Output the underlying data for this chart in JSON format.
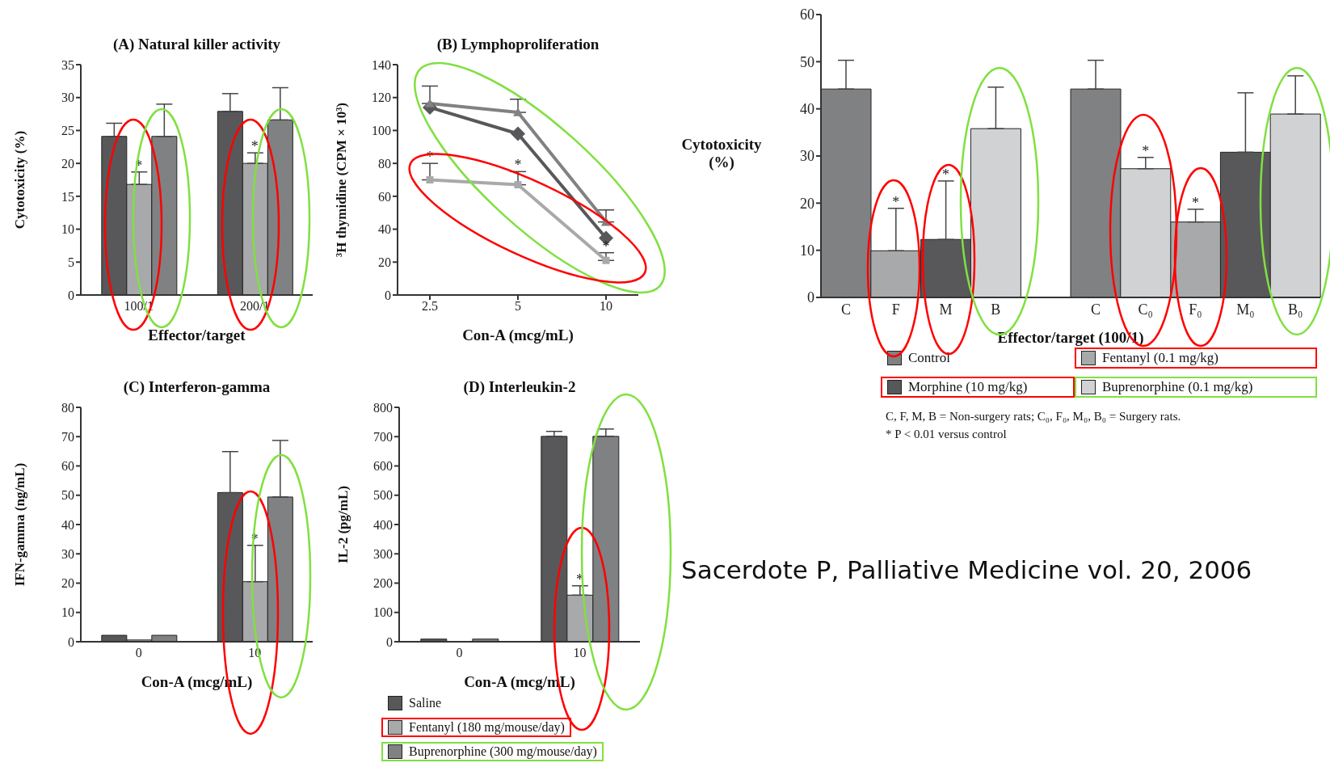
{
  "chart_data": [
    {
      "type": "bar",
      "title": "(A) Natural killer activity",
      "xlabel": "Effector/target",
      "ylabel": "Cytotoxicity (%)",
      "categories": [
        "100/1",
        "200/1"
      ],
      "ylim": [
        0,
        35
      ],
      "yticks": [
        0,
        5,
        10,
        15,
        20,
        25,
        30,
        35
      ],
      "series": [
        {
          "color": "#58585a",
          "values": [
            24.1,
            27.9
          ],
          "errors": [
            [
              24.1,
              26.1
            ],
            [
              27.9,
              30.6
            ]
          ]
        },
        {
          "color": "#a8a9ab",
          "values": [
            16.8,
            20.0
          ],
          "errors": [
            [
              16.8,
              18.7
            ],
            [
              20.0,
              21.6
            ]
          ]
        },
        {
          "color": "#808183",
          "values": [
            24.1,
            26.6
          ],
          "errors": [
            [
              24.1,
              29.0
            ],
            [
              26.6,
              31.5
            ]
          ]
        }
      ],
      "annotations": [
        {
          "text": "*",
          "x": "100/1",
          "y": 16.8
        },
        {
          "text": "*",
          "x": "200/1",
          "y": 20.0
        }
      ]
    },
    {
      "type": "line",
      "title": "(B) Lymphoproliferation",
      "xlabel": "Con-A (mcg/mL)",
      "ylabel": "³H thymidine (CPM × 10³)",
      "categories": [
        "2.5",
        "5",
        "10"
      ],
      "ylim": [
        0,
        140
      ],
      "yticks": [
        0,
        20,
        40,
        60,
        80,
        100,
        120,
        140
      ],
      "series": [
        {
          "color": "#58585a",
          "marker": "diamond",
          "values": [
            114,
            98,
            34.6
          ]
        },
        {
          "color": "#a8a9ab",
          "marker": "square",
          "values": [
            70,
            67,
            21
          ],
          "errors": [
            [
              70,
              80
            ],
            [
              67,
              75
            ],
            [
              21,
              25.7
            ]
          ]
        },
        {
          "color": "#808183",
          "marker": "triangle",
          "values": [
            116.4,
            111,
            44.4
          ],
          "errors": [
            [
              116.4,
              127
            ],
            [
              111,
              119
            ],
            [
              44.4,
              51.7
            ]
          ]
        }
      ],
      "annotations": [
        {
          "text": "*",
          "x": "2.5",
          "y": 70
        },
        {
          "text": "*",
          "x": "5",
          "y": 67
        },
        {
          "text": "*",
          "x": "10",
          "y": 21
        }
      ]
    },
    {
      "type": "bar",
      "title": "(C) Interferon-gamma",
      "xlabel": "Con-A (mcg/mL)",
      "ylabel": "IFN-gamma (ng/mL)",
      "categories": [
        "0",
        "10"
      ],
      "ylim": [
        0,
        80
      ],
      "yticks": [
        0,
        10,
        20,
        30,
        40,
        50,
        60,
        70,
        80
      ],
      "series": [
        {
          "color": "#58585a",
          "values": [
            2.2,
            50.9
          ],
          "errors": [
            null,
            [
              50.9,
              64.9
            ]
          ]
        },
        {
          "color": "#a8a9ab",
          "values": [
            0.6,
            20.5
          ],
          "errors": [
            null,
            [
              20.5,
              32.9
            ]
          ]
        },
        {
          "color": "#808183",
          "values": [
            2.2,
            49.4
          ],
          "errors": [
            null,
            [
              49.4,
              68.7
            ]
          ]
        }
      ],
      "annotations": [
        {
          "text": "*",
          "x": "10",
          "y": 20.5
        }
      ]
    },
    {
      "type": "bar",
      "title": "(D) Interleukin-2",
      "xlabel": "Con-A (mcg/mL)",
      "ylabel": "IL-2 (pg/mL)",
      "categories": [
        "0",
        "10"
      ],
      "ylim": [
        0,
        800
      ],
      "yticks": [
        0,
        100,
        200,
        300,
        400,
        500,
        600,
        700,
        800
      ],
      "legend": "bottom",
      "series": [
        {
          "name": "Saline",
          "color": "#58585a",
          "values": [
            9,
            701
          ],
          "errors": [
            null,
            [
              701,
              718
            ]
          ]
        },
        {
          "name": "Fentanyl (180 mg/mouse/day)",
          "color": "#a8a9ab",
          "values": [
            0,
            159
          ],
          "errors": [
            null,
            [
              159,
              191
            ]
          ]
        },
        {
          "name": "Buprenorphine (300 mg/mouse/day)",
          "color": "#808183",
          "values": [
            9,
            701
          ],
          "errors": [
            null,
            [
              701,
              726
            ]
          ]
        }
      ],
      "annotations": [
        {
          "text": "*",
          "x": "10",
          "y": 159
        }
      ]
    },
    {
      "type": "bar",
      "stacked": true,
      "xlabel": "Effector/target (100/1)",
      "ylabel": "Cytotoxicity (%)",
      "categories": [
        "C",
        "F",
        "M",
        "B",
        null,
        "C",
        "C₀",
        "F₀",
        "M₀",
        "B₀"
      ],
      "ylim": [
        0,
        60
      ],
      "yticks": [
        0,
        10,
        20,
        30,
        40,
        50,
        60
      ],
      "legend": "bottom",
      "series": [
        {
          "name": "Control",
          "color": "#808183",
          "values": [
            44.2,
            null,
            null,
            null,
            null,
            44.2,
            null,
            null,
            null,
            null
          ],
          "errors": [
            [
              44.2,
              50.3
            ],
            null,
            null,
            null,
            null,
            [
              44.2,
              50.3
            ],
            null,
            null,
            null,
            null
          ]
        },
        {
          "name": "Fentanyl (0.1 mg/kg)",
          "color": "#a8a9ab",
          "values": [
            null,
            9.9,
            null,
            null,
            null,
            null,
            null,
            16.0,
            null,
            null
          ],
          "errors": [
            null,
            [
              9.9,
              18.9
            ],
            null,
            null,
            null,
            null,
            null,
            [
              16.0,
              18.7
            ],
            null,
            null
          ]
        },
        {
          "name": "Morphine (10 mg/kg)",
          "color": "#58585a",
          "values": [
            null,
            null,
            12.3,
            null,
            null,
            null,
            null,
            null,
            30.8,
            null
          ],
          "errors": [
            null,
            null,
            [
              12.3,
              24.7
            ],
            null,
            null,
            null,
            null,
            null,
            [
              30.8,
              43.4
            ],
            null
          ]
        },
        {
          "name": "Buprenorphine (0.1 mg/kg)",
          "color": "#d1d2d4",
          "values": [
            null,
            null,
            null,
            35.8,
            null,
            null,
            27.3,
            null,
            null,
            38.9
          ],
          "errors": [
            null,
            null,
            null,
            [
              35.8,
              44.6
            ],
            null,
            null,
            [
              27.3,
              29.7
            ],
            null,
            null,
            [
              38.9,
              47.0
            ]
          ]
        }
      ],
      "annotations": [
        {
          "text": "*",
          "x": "F",
          "y": 9.9
        },
        {
          "text": "*",
          "x": "M",
          "y": 24.7
        },
        {
          "text": "*",
          "x": "C₀",
          "y": 27.3
        },
        {
          "text": "*",
          "x": "F₀",
          "y": 16.0
        },
        "C, F, M, B = Non-surgery rats; C₀, F₀, M₀, B₀ = Surgery rats.",
        "* P < 0.01 versus control",
        "Sacerdote P, Palliative Medicine vol. 20, 2006"
      ]
    }
  ]
}
